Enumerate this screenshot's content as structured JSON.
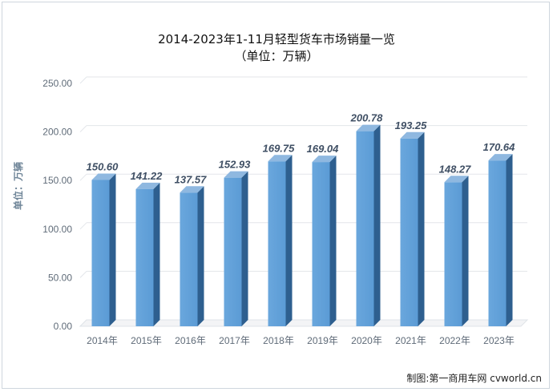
{
  "chart_data": {
    "type": "bar",
    "title": "2014-2023年1-11月轻型货车市场销量一览",
    "subtitle": "（单位：万辆）",
    "ylabel": "单位：万辆",
    "xlabel": "",
    "categories": [
      "2014年",
      "2015年",
      "2016年",
      "2017年",
      "2018年",
      "2019年",
      "2020年",
      "2021年",
      "2022年",
      "2023年"
    ],
    "values": [
      150.6,
      141.22,
      137.57,
      152.93,
      169.75,
      169.04,
      200.78,
      193.25,
      148.27,
      170.64
    ],
    "data_labels": [
      "150.60",
      "141.22",
      "137.57",
      "152.93",
      "169.75",
      "169.04",
      "200.78",
      "193.25",
      "148.27",
      "170.64"
    ],
    "ylim": [
      0,
      250
    ],
    "yticks": [
      "0.00",
      "50.00",
      "100.00",
      "150.00",
      "200.00",
      "250.00"
    ],
    "grid": true,
    "legend": "none",
    "colors": {
      "bar_front": "#5b9bd5",
      "bar_side": "#2e5f8f",
      "bar_top": "#8fb8e0",
      "grid": "#e3e6ea"
    }
  },
  "credit": "制图:第一商用车网 cvworld.cn"
}
